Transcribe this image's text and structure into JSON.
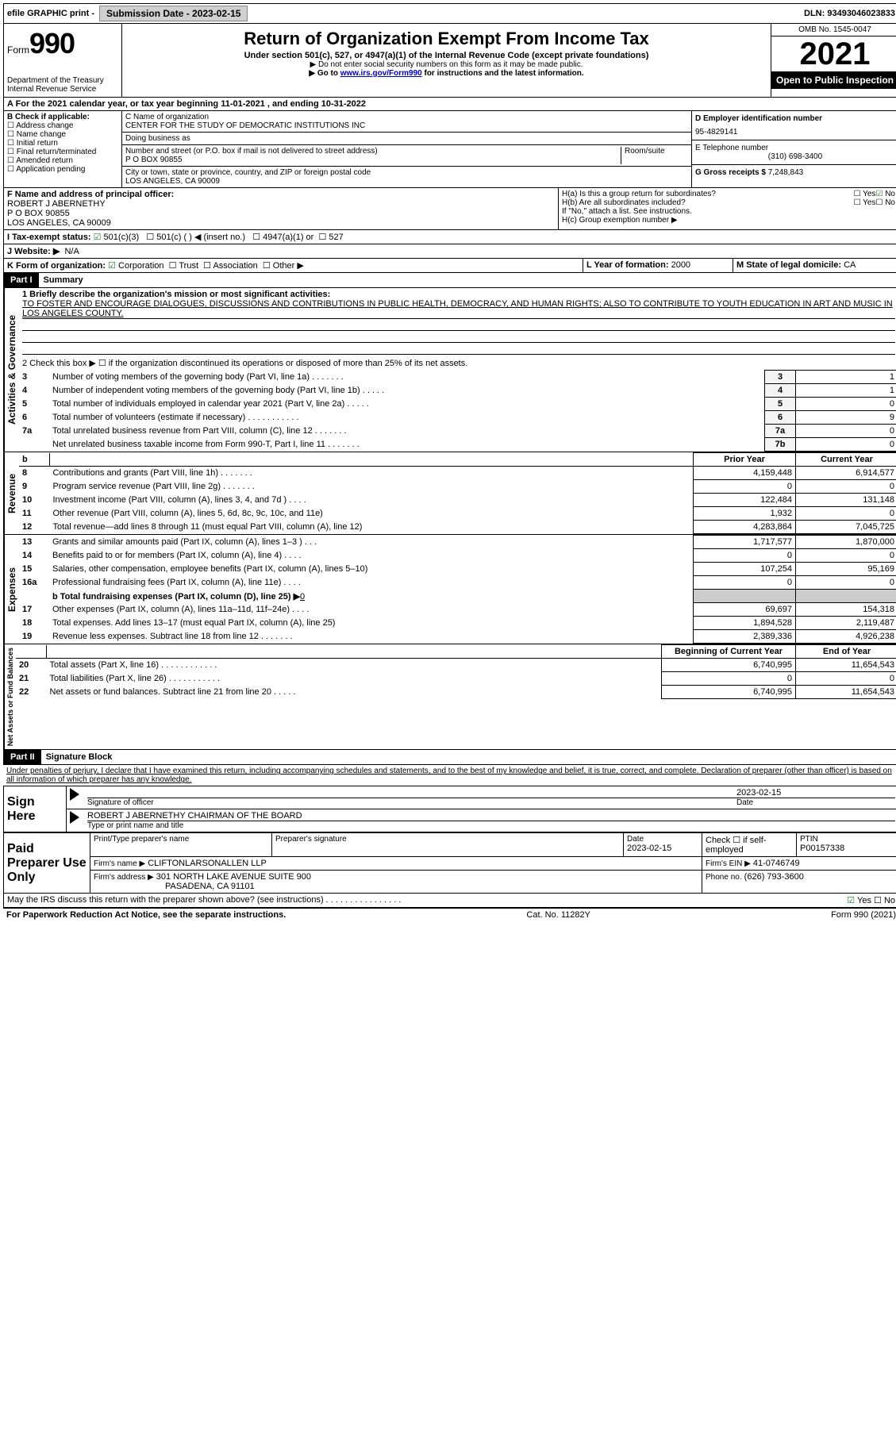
{
  "topbar": {
    "efile": "efile GRAPHIC print -",
    "submission_label": "Submission Date - 2023-02-15",
    "dln_label": "DLN: 93493046023833"
  },
  "header": {
    "form_word": "Form",
    "form_num": "990",
    "dept": "Department of the Treasury",
    "irs": "Internal Revenue Service",
    "title": "Return of Organization Exempt From Income Tax",
    "subtitle": "Under section 501(c), 527, or 4947(a)(1) of the Internal Revenue Code (except private foundations)",
    "note1": "▶ Do not enter social security numbers on this form as it may be made public.",
    "note2_pre": "▶ Go to ",
    "note2_link": "www.irs.gov/Form990",
    "note2_post": " for instructions and the latest information.",
    "omb": "OMB No. 1545-0047",
    "year": "2021",
    "open": "Open to Public Inspection"
  },
  "lineA": "A For the 2021 calendar year, or tax year beginning 11-01-2021   , and ending 10-31-2022",
  "B": {
    "label": "B Check if applicable:",
    "items": [
      "Address change",
      "Name change",
      "Initial return",
      "Final return/terminated",
      "Amended return",
      "Application pending"
    ]
  },
  "C": {
    "name_label": "C Name of organization",
    "name": "CENTER FOR THE STUDY OF DEMOCRATIC INSTITUTIONS INC",
    "dba_label": "Doing business as",
    "dba": "",
    "street_label": "Number and street (or P.O. box if mail is not delivered to street address)",
    "room_label": "Room/suite",
    "street": "P O BOX 90855",
    "city_label": "City or town, state or province, country, and ZIP or foreign postal code",
    "city": "LOS ANGELES, CA  90009"
  },
  "D": {
    "label": "D Employer identification number",
    "value": "95-4829141"
  },
  "E": {
    "label": "E Telephone number",
    "value": "(310) 698-3400"
  },
  "G": {
    "label": "G Gross receipts $",
    "value": "7,248,843"
  },
  "F": {
    "label": "F Name and address of principal officer:",
    "name": "ROBERT J ABERNETHY",
    "street": "P O BOX 90855",
    "city": "LOS ANGELES, CA  90009"
  },
  "H": {
    "a": "H(a)  Is this a group return for subordinates?",
    "b": "H(b)  Are all subordinates included?",
    "b_note": "If \"No,\" attach a list. See instructions.",
    "c": "H(c)  Group exemption number ▶"
  },
  "I": {
    "label": "I   Tax-exempt status:",
    "opts": [
      "501(c)(3)",
      "501(c) (  ) ◀ (insert no.)",
      "4947(a)(1) or",
      "527"
    ]
  },
  "J": {
    "label": "J   Website: ▶",
    "value": "N/A"
  },
  "K": {
    "label": "K Form of organization:",
    "opts": [
      "Corporation",
      "Trust",
      "Association",
      "Other ▶"
    ]
  },
  "L": {
    "label": "L Year of formation:",
    "value": "2000"
  },
  "M": {
    "label": "M State of legal domicile:",
    "value": "CA"
  },
  "part1": {
    "hdr": "Part I",
    "title": "Summary"
  },
  "mission_label": "1   Briefly describe the organization's mission or most significant activities:",
  "mission": "TO FOSTER AND ENCOURAGE DIALOGUES, DISCUSSIONS AND CONTRIBUTIONS IN PUBLIC HEALTH, DEMOCRACY, AND HUMAN RIGHTS; ALSO TO CONTRIBUTE TO YOUTH EDUCATION IN ART AND MUSIC IN LOS ANGELES COUNTY.",
  "line2": "2   Check this box ▶ ☐  if the organization discontinued its operations or disposed of more than 25% of its net assets.",
  "sections": {
    "gov_label": "Activities & Governance",
    "rev_label": "Revenue",
    "exp_label": "Expenses",
    "net_label": "Net Assets or Fund Balances"
  },
  "gov_rows": [
    {
      "n": "3",
      "t": "Number of voting members of the governing body (Part VI, line 1a)  .   .   .   .   .   .   .",
      "k": "3",
      "v": "1"
    },
    {
      "n": "4",
      "t": "Number of independent voting members of the governing body (Part VI, line 1b)  .   .   .   .   .",
      "k": "4",
      "v": "1"
    },
    {
      "n": "5",
      "t": "Total number of individuals employed in calendar year 2021 (Part V, line 2a)  .   .   .   .   .",
      "k": "5",
      "v": "0"
    },
    {
      "n": "6",
      "t": "Total number of volunteers (estimate if necessary)   .   .   .   .   .   .   .   .   .   .   .",
      "k": "6",
      "v": "9"
    },
    {
      "n": "7a",
      "t": "Total unrelated business revenue from Part VIII, column (C), line 12   .   .   .   .   .   .   .",
      "k": "7a",
      "v": "0"
    },
    {
      "n": "",
      "t": "Net unrelated business taxable income from Form 990-T, Part I, line 11  .   .   .   .   .   .   .",
      "k": "7b",
      "v": "0"
    }
  ],
  "col_hdrs": {
    "prior": "Prior Year",
    "current": "Current Year",
    "begin": "Beginning of Current Year",
    "end": "End of Year",
    "b": "b"
  },
  "rev_rows": [
    {
      "n": "8",
      "t": "Contributions and grants (Part VIII, line 1h)   .   .   .   .   .   .   .",
      "p": "4,159,448",
      "c": "6,914,577"
    },
    {
      "n": "9",
      "t": "Program service revenue (Part VIII, line 2g)   .   .   .   .   .   .   .",
      "p": "0",
      "c": "0"
    },
    {
      "n": "10",
      "t": "Investment income (Part VIII, column (A), lines 3, 4, and 7d )   .   .   .   .",
      "p": "122,484",
      "c": "131,148"
    },
    {
      "n": "11",
      "t": "Other revenue (Part VIII, column (A), lines 5, 6d, 8c, 9c, 10c, and 11e)",
      "p": "1,932",
      "c": "0"
    },
    {
      "n": "12",
      "t": "Total revenue—add lines 8 through 11 (must equal Part VIII, column (A), line 12)",
      "p": "4,283,864",
      "c": "7,045,725"
    }
  ],
  "exp_rows": [
    {
      "n": "13",
      "t": "Grants and similar amounts paid (Part IX, column (A), lines 1–3 )   .   .   .",
      "p": "1,717,577",
      "c": "1,870,000"
    },
    {
      "n": "14",
      "t": "Benefits paid to or for members (Part IX, column (A), line 4)   .   .   .   .",
      "p": "0",
      "c": "0"
    },
    {
      "n": "15",
      "t": "Salaries, other compensation, employee benefits (Part IX, column (A), lines 5–10)",
      "p": "107,254",
      "c": "95,169"
    },
    {
      "n": "16a",
      "t": "Professional fundraising fees (Part IX, column (A), line 11e)   .   .   .   .",
      "p": "0",
      "c": "0"
    }
  ],
  "line16b_pre": "b   Total fundraising expenses (Part IX, column (D), line 25) ▶",
  "line16b_val": "0",
  "exp_rows2": [
    {
      "n": "17",
      "t": "Other expenses (Part IX, column (A), lines 11a–11d, 11f–24e)   .   .   .   .",
      "p": "69,697",
      "c": "154,318"
    },
    {
      "n": "18",
      "t": "Total expenses. Add lines 13–17 (must equal Part IX, column (A), line 25)",
      "p": "1,894,528",
      "c": "2,119,487"
    },
    {
      "n": "19",
      "t": "Revenue less expenses. Subtract line 18 from line 12  .   .   .   .   .   .   .",
      "p": "2,389,336",
      "c": "4,926,238"
    }
  ],
  "net_rows": [
    {
      "n": "20",
      "t": "Total assets (Part X, line 16)  .   .   .   .   .   .   .   .   .   .   .   .",
      "p": "6,740,995",
      "c": "11,654,543"
    },
    {
      "n": "21",
      "t": "Total liabilities (Part X, line 26)  .   .   .   .   .   .   .   .   .   .   .",
      "p": "0",
      "c": "0"
    },
    {
      "n": "22",
      "t": "Net assets or fund balances. Subtract line 21 from line 20   .   .   .   .   .",
      "p": "6,740,995",
      "c": "11,654,543"
    }
  ],
  "part2": {
    "hdr": "Part II",
    "title": "Signature Block"
  },
  "perjury": "Under penalties of perjury, I declare that I have examined this return, including accompanying schedules and statements, and to the best of my knowledge and belief, it is true, correct, and complete. Declaration of preparer (other than officer) is based on all information of which preparer has any knowledge.",
  "sign": {
    "here": "Sign Here",
    "sig_label": "Signature of officer",
    "date": "2023-02-15",
    "date_label": "Date",
    "name": "ROBERT J ABERNETHY CHAIRMAN OF THE BOARD",
    "name_label": "Type or print name and title"
  },
  "preparer": {
    "label": "Paid Preparer Use Only",
    "print_label": "Print/Type preparer's name",
    "sig_label": "Preparer's signature",
    "date_label": "Date",
    "date": "2023-02-15",
    "check_label": "Check ☐ if self-employed",
    "ptin_label": "PTIN",
    "ptin": "P00157338",
    "firm_name_label": "Firm's name    ▶",
    "firm_name": "CLIFTONLARSONALLEN LLP",
    "firm_ein_label": "Firm's EIN ▶",
    "firm_ein": "41-0746749",
    "firm_addr_label": "Firm's address ▶",
    "firm_addr1": "301 NORTH LAKE AVENUE SUITE 900",
    "firm_addr2": "PASADENA, CA  91101",
    "phone_label": "Phone no.",
    "phone": "(626) 793-3600"
  },
  "discuss": "May the IRS discuss this return with the preparer shown above? (see instructions)   .   .   .   .   .   .   .   .   .   .   .   .   .   .   .   .",
  "footer": {
    "left": "For Paperwork Reduction Act Notice, see the separate instructions.",
    "mid": "Cat. No. 11282Y",
    "right": "Form 990 (2021)"
  },
  "yes": "Yes",
  "no": "No"
}
